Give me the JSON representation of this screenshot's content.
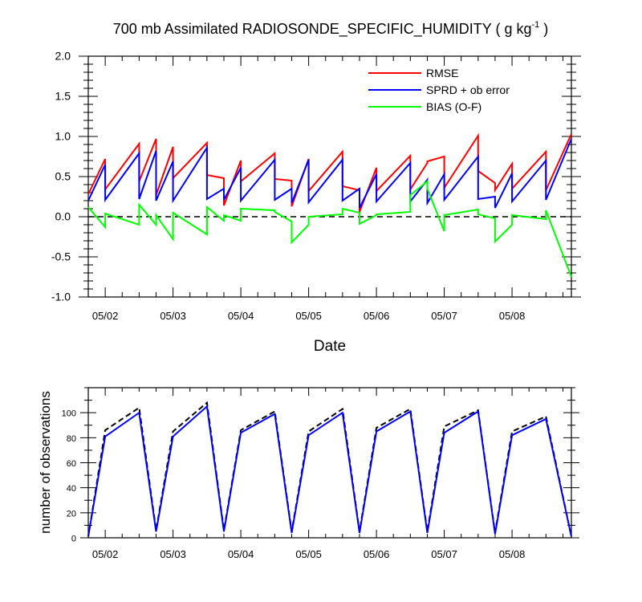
{
  "chart_data": [
    {
      "type": "line",
      "title": "700 mb Assimilated RADIOSONDE_SPECIFIC_HUMIDITY ( g kg",
      "title_exponent": "-1",
      "title_suffix": " )",
      "xlabel": "Date",
      "ylabel": "",
      "ylim": [
        -1.0,
        2.0
      ],
      "yticks": [
        -1.0,
        -0.5,
        0.0,
        0.5,
        1.0,
        1.5,
        2.0
      ],
      "yticklabels": [
        "-1.0",
        "-0.5",
        "0.0",
        "0.5",
        "1.0",
        "1.5",
        "2.0"
      ],
      "xlim": [
        "05/01 18:00",
        "05/08 21:00"
      ],
      "xticks": [
        "05/02",
        "05/03",
        "05/04",
        "05/05",
        "05/06",
        "05/07",
        "05/08"
      ],
      "grid": false,
      "legend_position": "top-right",
      "reference_line": {
        "y": 0,
        "style": "dashed",
        "color": "#000000"
      },
      "series": [
        {
          "name": "RMSE",
          "color": "#ff0000",
          "x": [
            "05/01 18:00",
            "05/02 00:00",
            "05/02 00:00",
            "05/02 12:00",
            "05/02 12:00",
            "05/02 18:00",
            "05/02 18:00",
            "05/03 00:00",
            "05/03 00:00",
            "05/03 12:00",
            "05/03 12:00",
            "05/03 18:00",
            "05/03 18:00",
            "05/04 00:00",
            "05/04 00:00",
            "05/04 12:00",
            "05/04 12:00",
            "05/04 18:00",
            "05/04 18:00",
            "05/05 00:00",
            "05/05 00:00",
            "05/05 12:00",
            "05/05 12:00",
            "05/05 18:00",
            "05/05 18:00",
            "05/06 00:00",
            "05/06 00:00",
            "05/06 12:00",
            "05/06 12:00",
            "05/06 18:00",
            "05/06 18:00",
            "05/07 00:00",
            "05/07 00:00",
            "05/07 12:00",
            "05/07 12:00",
            "05/07 18:00",
            "05/07 18:00",
            "05/08 00:00",
            "05/08 00:00",
            "05/08 12:00",
            "05/08 12:00",
            "05/08 21:00"
          ],
          "values": [
            0.28,
            0.72,
            0.34,
            0.91,
            0.44,
            0.97,
            0.27,
            0.87,
            0.48,
            0.92,
            0.52,
            0.48,
            0.14,
            0.7,
            0.44,
            0.79,
            0.47,
            0.45,
            0.13,
            0.72,
            0.32,
            0.81,
            0.38,
            0.33,
            0.06,
            0.61,
            0.32,
            0.76,
            0.34,
            0.67,
            0.69,
            0.75,
            0.36,
            1.01,
            0.57,
            0.42,
            0.33,
            0.66,
            0.35,
            0.81,
            0.33,
            1.03
          ]
        },
        {
          "name": "SPRD + ob error",
          "color": "#0000ff",
          "x": [
            "05/01 18:00",
            "05/02 00:00",
            "05/02 00:00",
            "05/02 12:00",
            "05/02 12:00",
            "05/02 18:00",
            "05/02 18:00",
            "05/03 00:00",
            "05/03 00:00",
            "05/03 12:00",
            "05/03 12:00",
            "05/03 18:00",
            "05/03 18:00",
            "05/04 00:00",
            "05/04 00:00",
            "05/04 12:00",
            "05/04 12:00",
            "05/04 18:00",
            "05/04 18:00",
            "05/05 00:00",
            "05/05 00:00",
            "05/05 12:00",
            "05/05 12:00",
            "05/05 18:00",
            "05/05 18:00",
            "05/06 00:00",
            "05/06 00:00",
            "05/06 12:00",
            "05/06 12:00",
            "05/06 18:00",
            "05/06 18:00",
            "05/07 00:00",
            "05/07 00:00",
            "05/07 12:00",
            "05/07 12:00",
            "05/07 18:00",
            "05/07 18:00",
            "05/08 00:00",
            "05/08 00:00",
            "05/08 12:00",
            "05/08 12:00",
            "05/08 21:00"
          ],
          "values": [
            0.2,
            0.65,
            0.21,
            0.79,
            0.22,
            0.82,
            0.2,
            0.69,
            0.2,
            0.86,
            0.22,
            0.35,
            0.21,
            0.61,
            0.2,
            0.71,
            0.21,
            0.35,
            0.17,
            0.71,
            0.18,
            0.71,
            0.2,
            0.35,
            0.11,
            0.53,
            0.19,
            0.67,
            0.19,
            0.46,
            0.17,
            0.53,
            0.21,
            0.75,
            0.22,
            0.25,
            0.11,
            0.54,
            0.19,
            0.7,
            0.21,
            0.97
          ]
        },
        {
          "name": "BIAS (O-F)",
          "color": "#00ff00",
          "x": [
            "05/01 18:00",
            "05/02 00:00",
            "05/02 00:00",
            "05/02 12:00",
            "05/02 12:00",
            "05/02 18:00",
            "05/02 18:00",
            "05/03 00:00",
            "05/03 00:00",
            "05/03 12:00",
            "05/03 12:00",
            "05/03 18:00",
            "05/03 18:00",
            "05/04 00:00",
            "05/04 00:00",
            "05/04 12:00",
            "05/04 12:00",
            "05/04 18:00",
            "05/04 18:00",
            "05/05 00:00",
            "05/05 00:00",
            "05/05 12:00",
            "05/05 12:00",
            "05/05 18:00",
            "05/05 18:00",
            "05/06 00:00",
            "05/06 00:00",
            "05/06 12:00",
            "05/06 12:00",
            "05/06 18:00",
            "05/06 18:00",
            "05/07 00:00",
            "05/07 00:00",
            "05/07 12:00",
            "05/07 12:00",
            "05/07 18:00",
            "05/07 18:00",
            "05/08 00:00",
            "05/08 00:00",
            "05/08 12:00",
            "05/08 12:00",
            "05/08 21:00"
          ],
          "values": [
            0.12,
            -0.13,
            0.04,
            -0.1,
            0.15,
            -0.1,
            0.02,
            -0.28,
            0.05,
            -0.22,
            0.12,
            -0.05,
            0.02,
            -0.05,
            0.1,
            0.08,
            0.06,
            -0.06,
            -0.32,
            -0.1,
            0.0,
            0.03,
            0.1,
            0.05,
            -0.09,
            0.02,
            0.03,
            0.06,
            0.27,
            0.44,
            0.35,
            -0.18,
            0.02,
            0.09,
            0.03,
            -0.02,
            -0.31,
            -0.1,
            0.02,
            -0.03,
            0.08,
            -0.75
          ]
        }
      ]
    },
    {
      "type": "line",
      "title": "",
      "xlabel": "",
      "ylabel": "number of observations",
      "ylim": [
        0,
        120
      ],
      "yticks": [
        0,
        20,
        40,
        60,
        80,
        100
      ],
      "yticklabels": [
        "0",
        "20",
        "40",
        "60",
        "80",
        "100"
      ],
      "xlim": [
        "05/01 18:00",
        "05/08 21:00"
      ],
      "xticks": [
        "05/02",
        "05/03",
        "05/04",
        "05/05",
        "05/06",
        "05/07",
        "05/08"
      ],
      "grid": false,
      "series": [
        {
          "style": "dashed",
          "color": "#000000",
          "x": [
            "05/01 18:00",
            "05/02 00:00",
            "05/02 12:00",
            "05/02 18:00",
            "05/03 00:00",
            "05/03 12:00",
            "05/03 18:00",
            "05/04 00:00",
            "05/04 12:00",
            "05/04 18:00",
            "05/05 00:00",
            "05/05 12:00",
            "05/05 18:00",
            "05/06 00:00",
            "05/06 12:00",
            "05/06 18:00",
            "05/07 00:00",
            "05/07 12:00",
            "05/07 18:00",
            "05/08 00:00",
            "05/08 12:00",
            "05/08 21:00"
          ],
          "values": [
            1,
            86,
            104,
            6,
            85,
            108,
            6,
            86,
            101,
            5,
            85,
            103,
            5,
            88,
            103,
            5,
            89,
            102,
            4,
            85,
            97,
            1
          ]
        },
        {
          "style": "solid",
          "color": "#0000ff",
          "x": [
            "05/01 18:00",
            "05/02 00:00",
            "05/02 12:00",
            "05/02 18:00",
            "05/03 00:00",
            "05/03 12:00",
            "05/03 18:00",
            "05/04 00:00",
            "05/04 12:00",
            "05/04 18:00",
            "05/05 00:00",
            "05/05 12:00",
            "05/05 18:00",
            "05/06 00:00",
            "05/06 12:00",
            "05/06 18:00",
            "05/07 00:00",
            "05/07 12:00",
            "05/07 18:00",
            "05/08 00:00",
            "05/08 12:00",
            "05/08 21:00"
          ],
          "values": [
            1,
            81,
            100,
            5,
            81,
            105,
            5,
            84,
            99,
            4,
            82,
            100,
            4,
            85,
            101,
            4,
            84,
            101,
            3,
            82,
            95,
            1
          ]
        }
      ]
    }
  ]
}
